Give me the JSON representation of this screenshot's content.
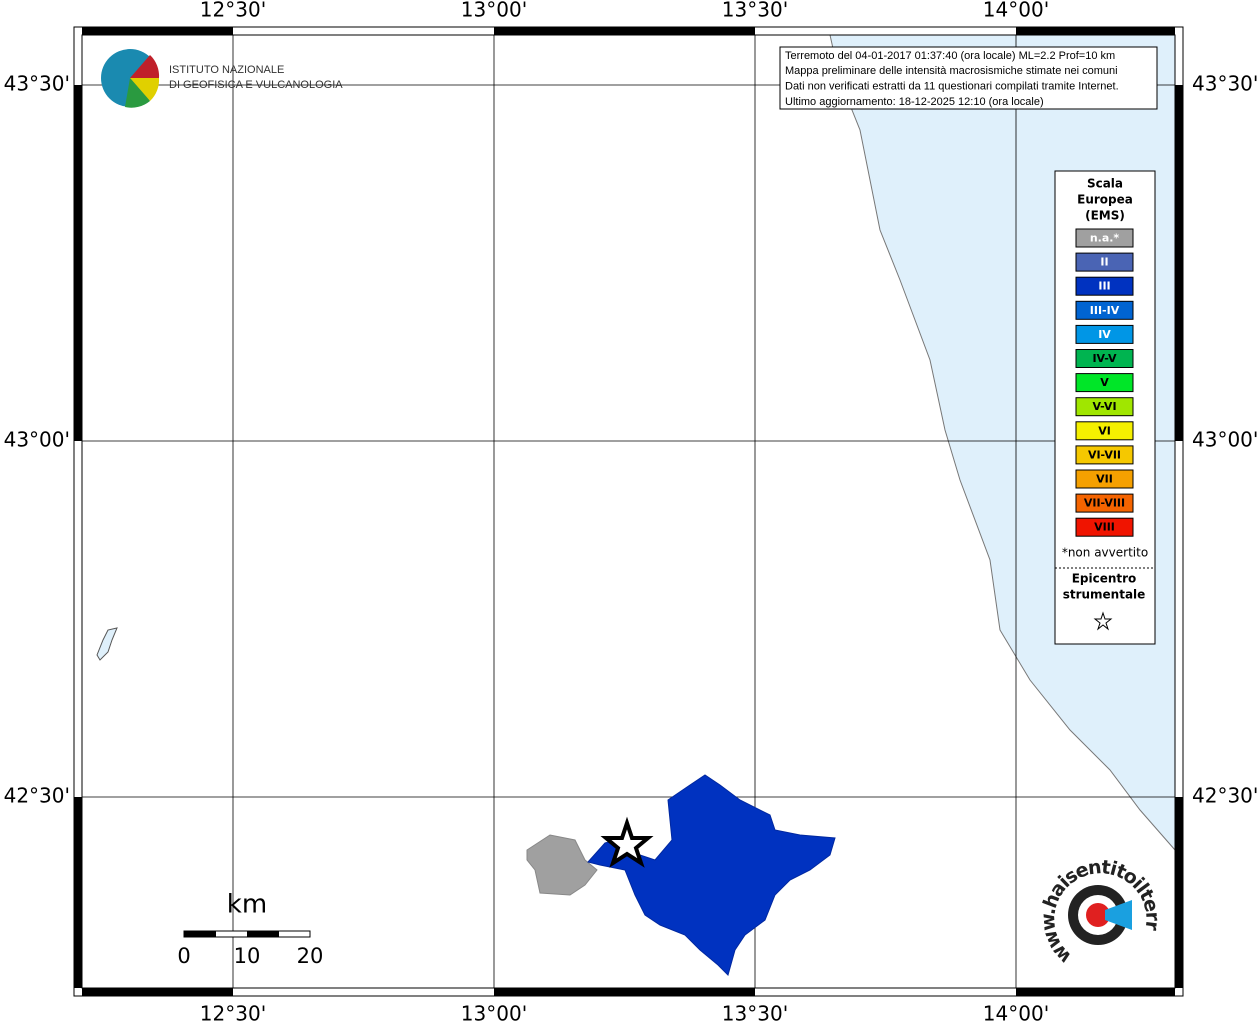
{
  "map": {
    "lon_labels": [
      "12°30'",
      "13°00'",
      "13°30'",
      "14°00'"
    ],
    "lat_labels": [
      "43°30'",
      "43°00'",
      "42°30'"
    ]
  },
  "logo": {
    "lines": [
      "ISTITUTO NAZIONALE",
      "DI GEOFISICA E VULCANOLOGIA"
    ]
  },
  "info": {
    "lines": [
      "Terremoto del 04-01-2017 01:37:40 (ora locale) ML=2.2 Prof=10 km",
      "Mappa preliminare delle intensità macrosismiche stimate nei comuni",
      "Dati non verificati estratti da 11 questionari compilati tramite Internet.",
      "Ultimo aggiornamento: 18-12-2025 12:10 (ora locale)"
    ]
  },
  "legend": {
    "title_lines": [
      "Scala",
      "Europea",
      "(EMS)"
    ],
    "items": [
      {
        "label": "n.a.*",
        "color": "#a0a0a0"
      },
      {
        "label": "II",
        "color": "#4a64b4"
      },
      {
        "label": "III",
        "color": "#0032c0"
      },
      {
        "label": "III-IV",
        "color": "#0064d2"
      },
      {
        "label": "IV",
        "color": "#0096e6"
      },
      {
        "label": "IV-V",
        "color": "#00b450"
      },
      {
        "label": "V",
        "color": "#00e628"
      },
      {
        "label": "V-VI",
        "color": "#a0e600"
      },
      {
        "label": "VI",
        "color": "#f5f000"
      },
      {
        "label": "VI-VII",
        "color": "#f5c800"
      },
      {
        "label": "VII",
        "color": "#f5a000"
      },
      {
        "label": "VII-VIII",
        "color": "#f56400"
      },
      {
        "label": "VIII",
        "color": "#f01400"
      }
    ],
    "note": "*non avvertito",
    "epicenter_lines": [
      "Epicentro",
      "strumentale"
    ]
  },
  "scale_bar": {
    "unit": "km",
    "labels": [
      0,
      10,
      20
    ]
  },
  "badge": {
    "text": "www.haisentitoilterremoto.it"
  }
}
